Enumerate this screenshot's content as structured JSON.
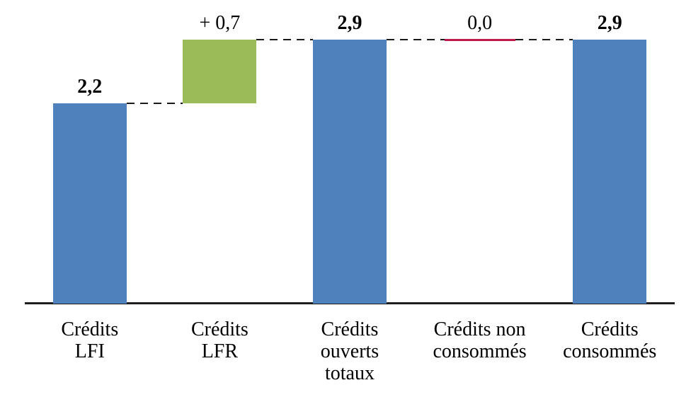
{
  "chart_data": {
    "type": "bar",
    "subtype": "waterfall",
    "title": "",
    "xlabel": "",
    "ylabel": "",
    "ylim": [
      0,
      3.34
    ],
    "grid": false,
    "legend": false,
    "connector_style": "dashed",
    "decimal_format": "french-comma",
    "categories": [
      "Crédits\nLFI",
      "Crédits\nLFR",
      "Crédits\nouverts\ntotaux",
      "Crédits non\nconsommés",
      "Crédits\nconsommés"
    ],
    "steps": [
      {
        "category": "Crédits\nLFI",
        "kind": "total",
        "value": 2.2,
        "label": "2,2",
        "label_bold": true,
        "color": "#4F81BD"
      },
      {
        "category": "Crédits\nLFR",
        "kind": "delta",
        "value": 0.7,
        "label": "+ 0,7",
        "label_bold": false,
        "color": "#9BBB59"
      },
      {
        "category": "Crédits\nouverts\ntotaux",
        "kind": "total",
        "value": 2.9,
        "label": "2,9",
        "label_bold": true,
        "color": "#4F81BD"
      },
      {
        "category": "Crédits non\nconsommés",
        "kind": "delta",
        "value": 0.0,
        "label": "0,0",
        "label_bold": false,
        "color": "#C01A4D"
      },
      {
        "category": "Crédits\nconsommés",
        "kind": "total",
        "value": 2.9,
        "label": "2,9",
        "label_bold": true,
        "color": "#4F81BD"
      }
    ],
    "colors": {
      "total_bar": "#4F81BD",
      "increase_bar": "#9BBB59",
      "zero_line": "#C01A4D",
      "axis": "#1f1f1f",
      "connector": "#1a1a1a",
      "text": "#000000",
      "background": "#ffffff"
    }
  }
}
